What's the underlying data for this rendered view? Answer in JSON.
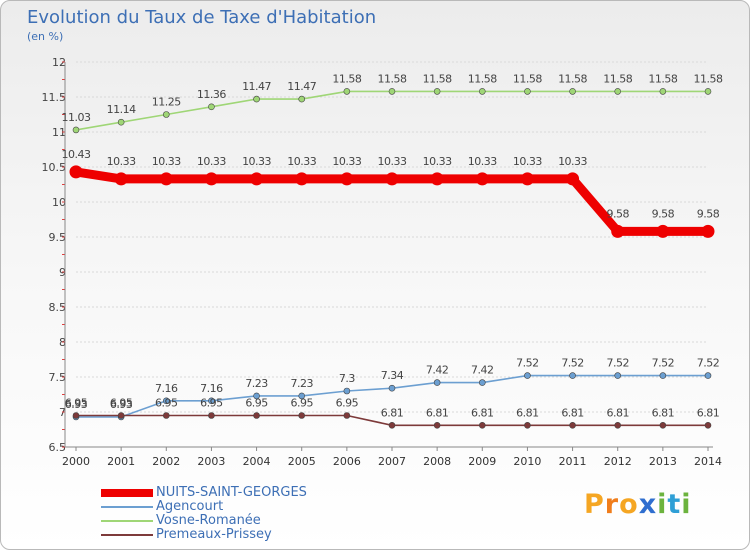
{
  "header": {
    "title": "Evolution du Taux de Taxe d'Habitation",
    "subtitle": "(en %)"
  },
  "brand": {
    "letters": [
      "P",
      "r",
      "o",
      "x",
      "i",
      "t",
      "i"
    ],
    "colors": [
      "#f5a623",
      "#f07d1b",
      "#f5a623",
      "#2f6ecf",
      "#6cb33e",
      "#2f9fd6",
      "#6cb33e"
    ]
  },
  "chart_data": {
    "type": "line",
    "title": "Evolution du Taux de Taxe d'Habitation",
    "subtitle": "(en %)",
    "xlabel": "",
    "ylabel": "",
    "x": [
      2000,
      2001,
      2002,
      2003,
      2004,
      2005,
      2006,
      2007,
      2008,
      2009,
      2010,
      2011,
      2012,
      2013,
      2014
    ],
    "ylim": [
      6.5,
      12
    ],
    "yticks": [
      6.5,
      7,
      7.5,
      8,
      8.5,
      9,
      9.5,
      10,
      10.5,
      11,
      11.5,
      12
    ],
    "grid": "horizontal",
    "legend_position": "bottom-left",
    "series": [
      {
        "name": "NUITS-SAINT-GEORGES",
        "color": "#ee0000",
        "emphasis": true,
        "values": [
          10.43,
          10.33,
          10.33,
          10.33,
          10.33,
          10.33,
          10.33,
          10.33,
          10.33,
          10.33,
          10.33,
          10.33,
          9.58,
          9.58,
          9.58
        ]
      },
      {
        "name": "Agencourt",
        "color": "#6c9fd1",
        "values": [
          6.93,
          6.93,
          7.16,
          7.16,
          7.23,
          7.23,
          7.3,
          7.34,
          7.42,
          7.42,
          7.52,
          7.52,
          7.52,
          7.52,
          7.52
        ]
      },
      {
        "name": "Vosne-Romanée",
        "color": "#9fd676",
        "values": [
          11.03,
          11.14,
          11.25,
          11.36,
          11.47,
          11.47,
          11.58,
          11.58,
          11.58,
          11.58,
          11.58,
          11.58,
          11.58,
          11.58,
          11.58
        ]
      },
      {
        "name": "Premeaux-Prissey",
        "color": "#7d3a3a",
        "values": [
          6.95,
          6.95,
          6.95,
          6.95,
          6.95,
          6.95,
          6.95,
          6.81,
          6.81,
          6.81,
          6.81,
          6.81,
          6.81,
          6.81,
          6.81
        ]
      }
    ],
    "data_labels": [
      {
        "series": 0,
        "values": [
          "10.43",
          "10.33",
          "10.33",
          "10.33",
          "10.33",
          "10.33",
          "10.33",
          "10.33",
          "10.33",
          "10.33",
          "10.33",
          "10.33",
          "9.58",
          "9.58",
          "9.58"
        ]
      },
      {
        "series": 1,
        "values": [
          "6.93",
          "6.93",
          "7.16",
          "7.16",
          "7.23",
          "7.23",
          "7.3",
          "7.34",
          "7.42",
          "7.42",
          "7.52",
          "7.52",
          "7.52",
          "7.52",
          "7.52"
        ]
      },
      {
        "series": 2,
        "values": [
          "11.03",
          "11.14",
          "11.25",
          "11.36",
          "11.47",
          "11.47",
          "11.58",
          "11.58",
          "11.58",
          "11.58",
          "11.58",
          "11.58",
          "11.58",
          "11.58",
          "11.58"
        ]
      },
      {
        "series": 3,
        "values": [
          "6.95",
          "6.95",
          "6.95",
          "6.95",
          "6.95",
          "6.95",
          "6.95",
          "6.81",
          "6.81",
          "6.81",
          "6.81",
          "6.81",
          "6.81",
          "6.81",
          "6.81"
        ]
      }
    ]
  }
}
